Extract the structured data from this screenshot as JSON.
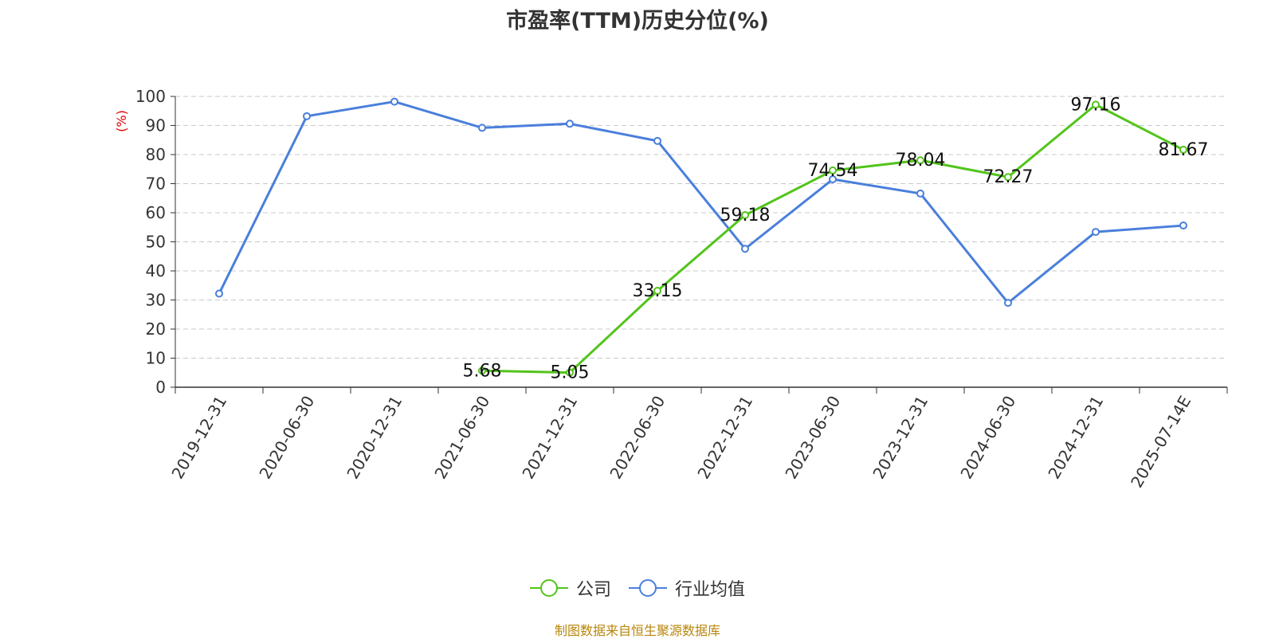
{
  "chart_data": {
    "type": "line",
    "title": "市盈率(TTM)历史分位(%)",
    "ylabel": "(%)",
    "ylim": [
      0,
      100
    ],
    "yticks": [
      0,
      10,
      20,
      30,
      40,
      50,
      60,
      70,
      80,
      90,
      100
    ],
    "categories": [
      "2019-12-31",
      "2020-06-30",
      "2020-12-31",
      "2021-06-30",
      "2021-12-31",
      "2022-06-30",
      "2022-12-31",
      "2023-06-30",
      "2023-12-31",
      "2024-06-30",
      "2024-12-31",
      "2025-07-14E"
    ],
    "grid": true,
    "legend_position": "bottom",
    "series": [
      {
        "name": "公司",
        "color": "#52c41a",
        "values": [
          null,
          null,
          null,
          5.68,
          5.05,
          33.15,
          59.18,
          74.54,
          78.04,
          72.27,
          97.16,
          81.67
        ],
        "labels": [
          null,
          null,
          null,
          "5.68",
          "5.05",
          "33.15",
          "59.18",
          "74.54",
          "78.04",
          "72.27",
          "97.16",
          "81.67"
        ]
      },
      {
        "name": "行业均值",
        "color": "#4a7fdc",
        "values": [
          32.2,
          93.2,
          98.2,
          89.2,
          90.6,
          84.7,
          47.6,
          71.5,
          66.6,
          29.0,
          53.4,
          55.6
        ]
      }
    ]
  },
  "source": "制图数据来自恒生聚源数据库"
}
